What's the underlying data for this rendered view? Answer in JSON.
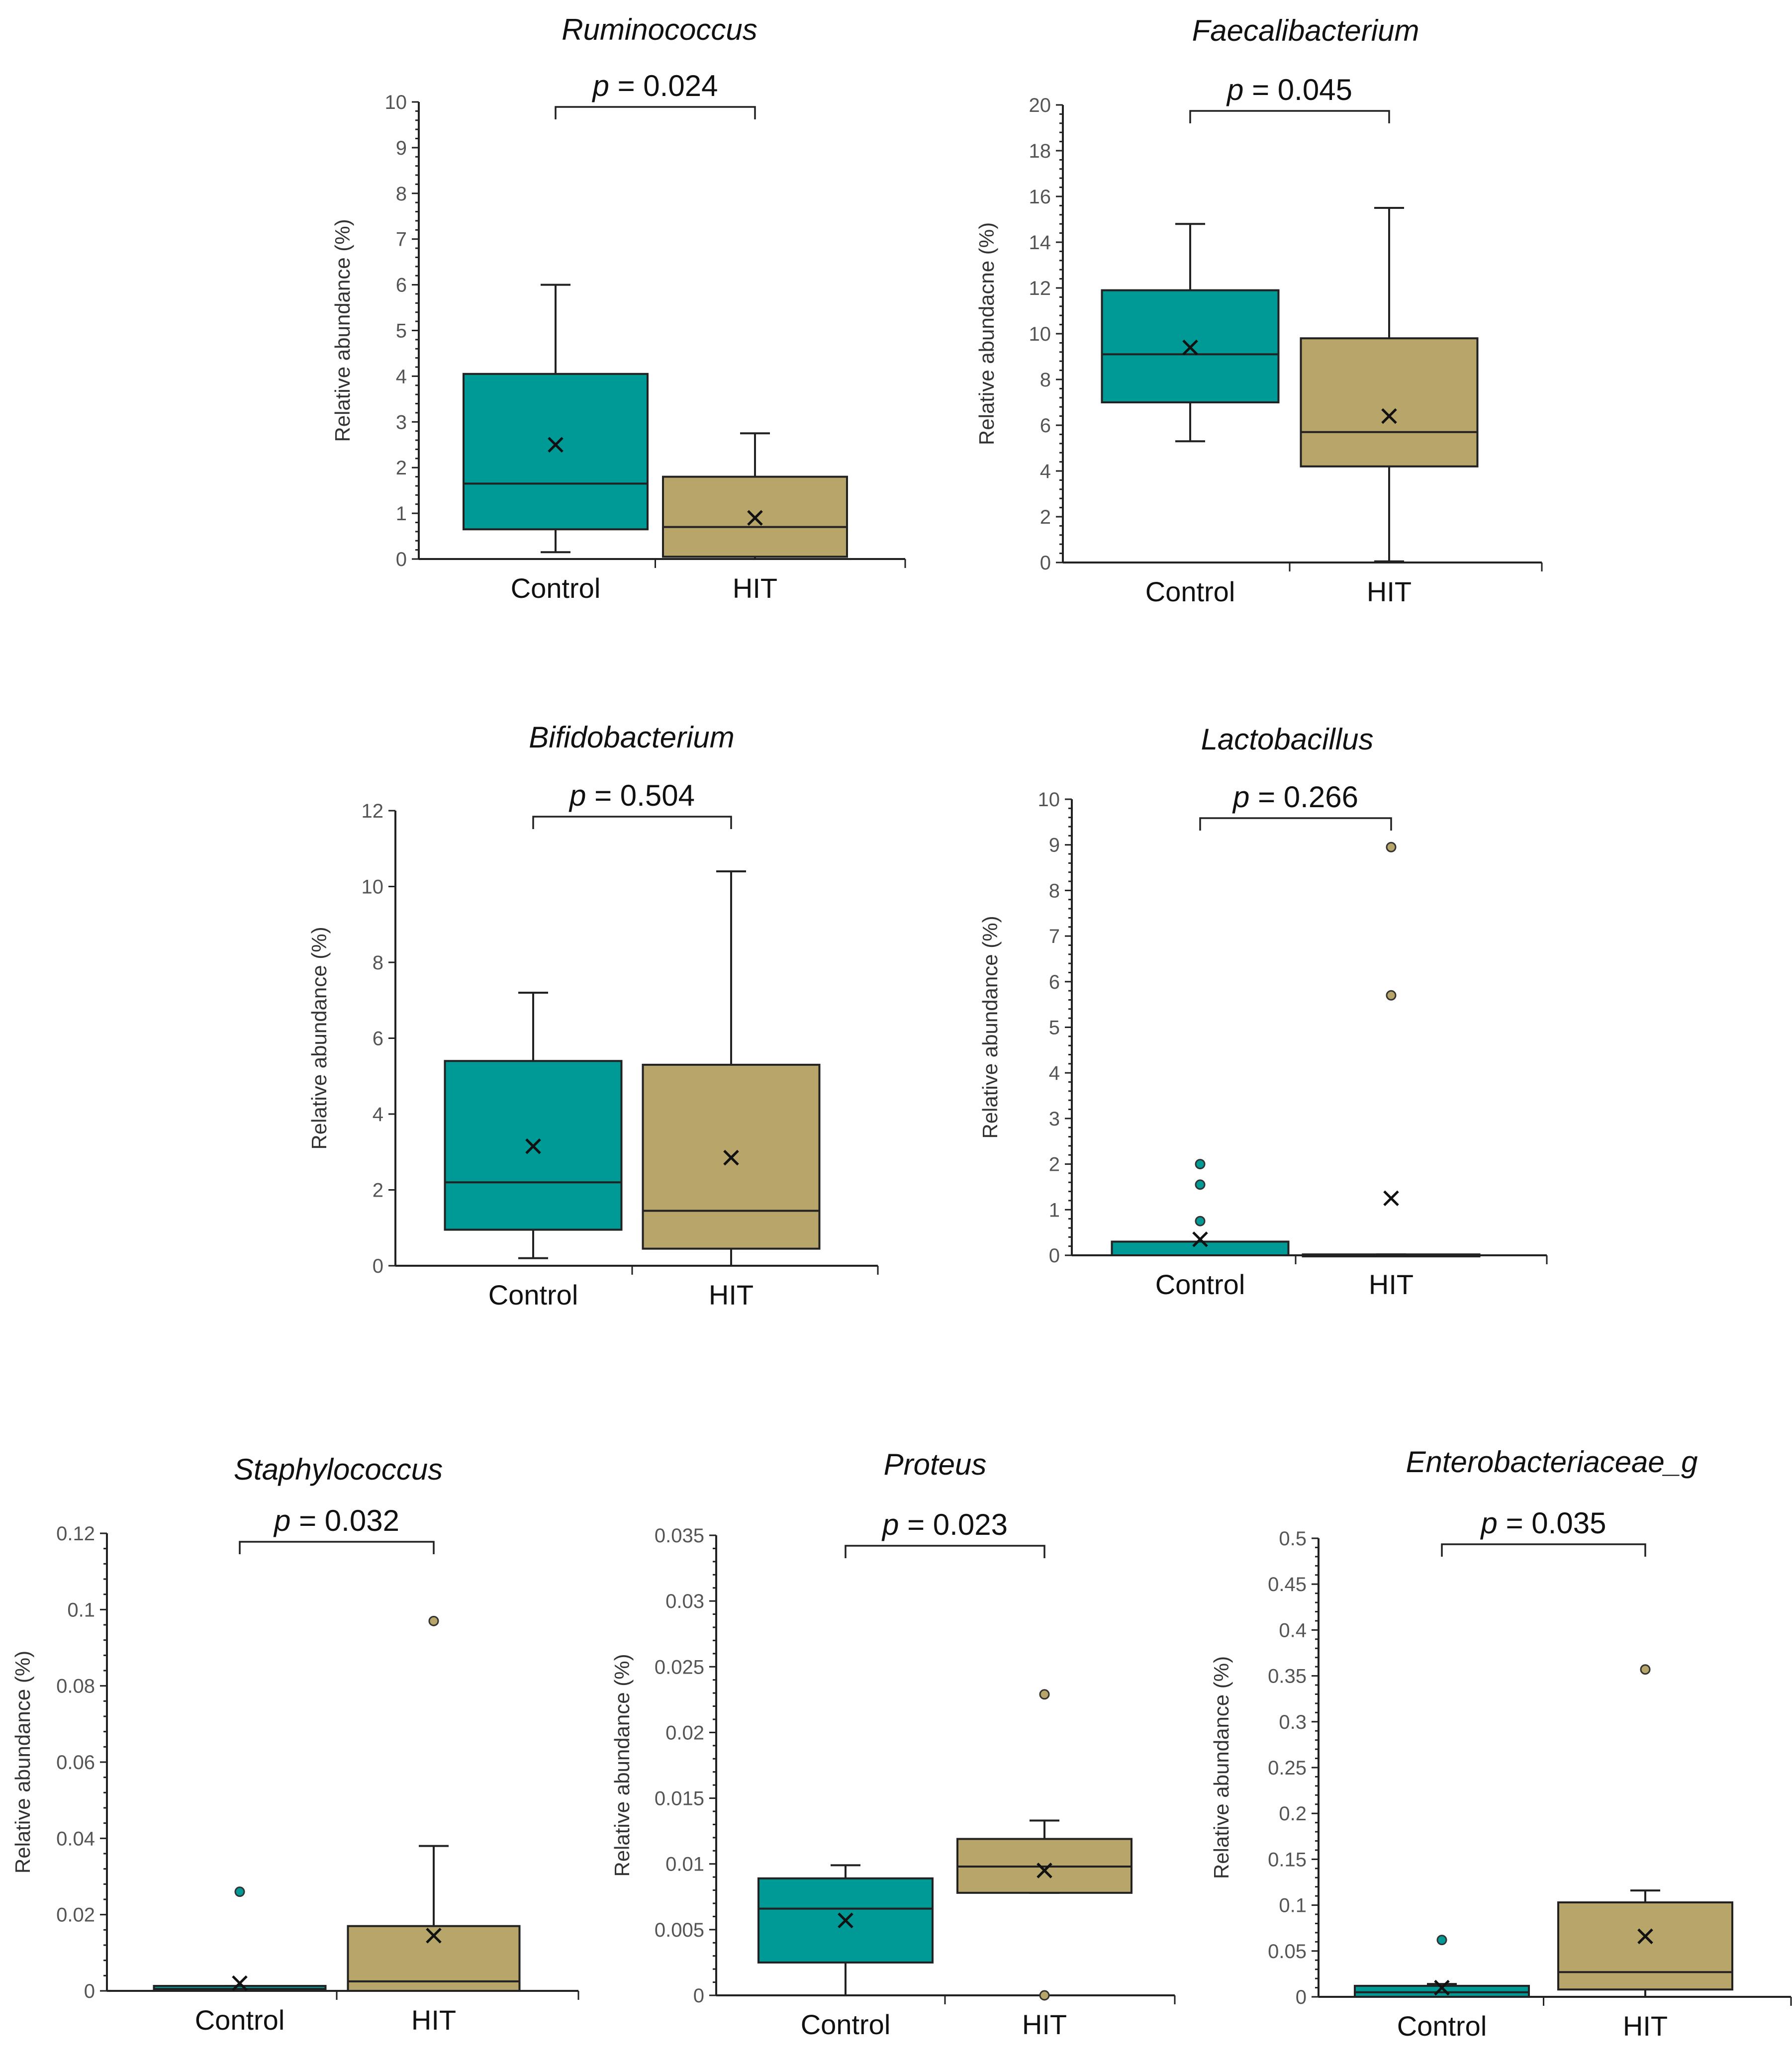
{
  "figure": {
    "y_axis_label": "Relative abundance (%)",
    "colors": {
      "control": "#009a96",
      "hit": "#b8a56a",
      "axis": "#222222"
    }
  },
  "chart_data": [
    {
      "type": "box",
      "title": "Ruminococcus",
      "p_value": "0.024",
      "ylabel": "Relative abundance (%)",
      "ylim": [
        0,
        10
      ],
      "yticks": [
        "0",
        "1",
        "2",
        "3",
        "4",
        "5",
        "6",
        "7",
        "8",
        "9",
        "10"
      ],
      "minor_ticks": true,
      "categories": [
        "Control",
        "HIT"
      ],
      "series": [
        {
          "name": "Control",
          "color": "#009a96",
          "whisker_low": 0.15,
          "q1": 0.65,
          "median": 1.65,
          "q3": 4.05,
          "whisker_high": 6.0,
          "mean": 2.5,
          "outliers": []
        },
        {
          "name": "HIT",
          "color": "#b8a56a",
          "whisker_low": 0.0,
          "q1": 0.05,
          "median": 0.7,
          "q3": 1.8,
          "whisker_high": 2.75,
          "mean": 0.9,
          "outliers": []
        }
      ]
    },
    {
      "type": "box",
      "title": "Faecalibacterium",
      "p_value": "0.045",
      "ylabel": "Relative abundacne (%)",
      "ylim": [
        0,
        20
      ],
      "yticks": [
        "0",
        "2",
        "4",
        "6",
        "8",
        "10",
        "12",
        "14",
        "16",
        "18",
        "20"
      ],
      "minor_ticks": true,
      "categories": [
        "Control",
        "HIT"
      ],
      "series": [
        {
          "name": "Control",
          "color": "#009a96",
          "whisker_low": 5.3,
          "q1": 7.0,
          "median": 9.1,
          "q3": 11.9,
          "whisker_high": 14.8,
          "mean": 9.4,
          "outliers": []
        },
        {
          "name": "HIT",
          "color": "#b8a56a",
          "whisker_low": 0.05,
          "q1": 4.2,
          "median": 5.7,
          "q3": 9.8,
          "whisker_high": 15.5,
          "mean": 6.4,
          "outliers": []
        }
      ]
    },
    {
      "type": "box",
      "title": "Bifidobacterium",
      "p_value": "0.504",
      "ylabel": "Relative abundance (%)",
      "ylim": [
        0,
        12
      ],
      "yticks": [
        "0",
        "2",
        "4",
        "6",
        "8",
        "10",
        "12"
      ],
      "minor_ticks": false,
      "categories": [
        "Control",
        "HIT"
      ],
      "series": [
        {
          "name": "Control",
          "color": "#009a96",
          "whisker_low": 0.2,
          "q1": 0.95,
          "median": 2.2,
          "q3": 5.4,
          "whisker_high": 7.2,
          "mean": 3.15,
          "outliers": []
        },
        {
          "name": "HIT",
          "color": "#b8a56a",
          "whisker_low": 0.0,
          "q1": 0.45,
          "median": 1.45,
          "q3": 5.3,
          "whisker_high": 10.4,
          "mean": 2.85,
          "outliers": []
        }
      ]
    },
    {
      "type": "box",
      "title": "Lactobacillus",
      "p_value": "0.266",
      "ylabel": "Relative abundance (%)",
      "ylim": [
        0,
        10
      ],
      "yticks": [
        "0",
        "1",
        "2",
        "3",
        "4",
        "5",
        "6",
        "7",
        "8",
        "9",
        "10"
      ],
      "minor_ticks": true,
      "categories": [
        "Control",
        "HIT"
      ],
      "series": [
        {
          "name": "Control",
          "color": "#009a96",
          "whisker_low": 0.0,
          "q1": 0.0,
          "median": 0.0,
          "q3": 0.3,
          "whisker_high": 0.3,
          "mean": 0.35,
          "outliers": [
            0.75,
            1.55,
            2.0
          ]
        },
        {
          "name": "HIT",
          "color": "#b8a56a",
          "whisker_low": 0.0,
          "q1": 0.0,
          "median": 0.0,
          "q3": 0.02,
          "whisker_high": 0.02,
          "mean": 1.25,
          "outliers": [
            5.7,
            8.95
          ]
        }
      ]
    },
    {
      "type": "box",
      "title": "Staphylococcus",
      "p_value": "0.032",
      "ylabel": "Relative abundance (%)",
      "ylim": [
        0,
        0.12
      ],
      "yticks": [
        "0",
        "0.02",
        "0.04",
        "0.06",
        "0.08",
        "0.1",
        "0.12"
      ],
      "minor_ticks": true,
      "categories": [
        "Control",
        "HIT"
      ],
      "series": [
        {
          "name": "Control",
          "color": "#009a96",
          "whisker_low": 0.0,
          "q1": 0.0,
          "median": 0.0005,
          "q3": 0.0013,
          "whisker_high": 0.0013,
          "mean": 0.002,
          "outliers": [
            0.026
          ]
        },
        {
          "name": "HIT",
          "color": "#b8a56a",
          "whisker_low": 0.0,
          "q1": 0.0,
          "median": 0.0025,
          "q3": 0.017,
          "whisker_high": 0.038,
          "mean": 0.0145,
          "outliers": [
            0.097
          ]
        }
      ]
    },
    {
      "type": "box",
      "title": "Proteus",
      "p_value": "0.023",
      "ylabel": "Relative abundance (%)",
      "ylim": [
        0,
        0.035
      ],
      "yticks": [
        "0",
        "0.005",
        "0.01",
        "0.015",
        "0.02",
        "0.025",
        "0.03",
        "0.035"
      ],
      "minor_ticks": true,
      "categories": [
        "Control",
        "HIT"
      ],
      "series": [
        {
          "name": "Control",
          "color": "#009a96",
          "whisker_low": 0.0,
          "q1": 0.0025,
          "median": 0.0066,
          "q3": 0.0089,
          "whisker_high": 0.0099,
          "mean": 0.0057,
          "outliers": []
        },
        {
          "name": "HIT",
          "color": "#b8a56a",
          "whisker_low": 0.0078,
          "q1": 0.0078,
          "median": 0.0098,
          "q3": 0.0119,
          "whisker_high": 0.0133,
          "mean": 0.0095,
          "outliers": [
            0.0,
            0.0229
          ]
        }
      ]
    },
    {
      "type": "box",
      "title": "Enterobacteriaceae_g",
      "p_value": "0.035",
      "ylabel": "Relative abundance (%)",
      "ylim": [
        0,
        0.5
      ],
      "yticks": [
        "0",
        "0.05",
        "0.1",
        "0.15",
        "0.2",
        "0.25",
        "0.3",
        "0.35",
        "0.4",
        "0.45",
        "0.5"
      ],
      "minor_ticks": true,
      "categories": [
        "Control",
        "HIT"
      ],
      "series": [
        {
          "name": "Control",
          "color": "#009a96",
          "whisker_low": 0.0,
          "q1": 0.0,
          "median": 0.005,
          "q3": 0.012,
          "whisker_high": 0.014,
          "mean": 0.01,
          "outliers": [
            0.062
          ]
        },
        {
          "name": "HIT",
          "color": "#b8a56a",
          "whisker_low": 0.0,
          "q1": 0.008,
          "median": 0.027,
          "q3": 0.103,
          "whisker_high": 0.116,
          "mean": 0.066,
          "outliers": [
            0.357
          ]
        }
      ]
    }
  ]
}
